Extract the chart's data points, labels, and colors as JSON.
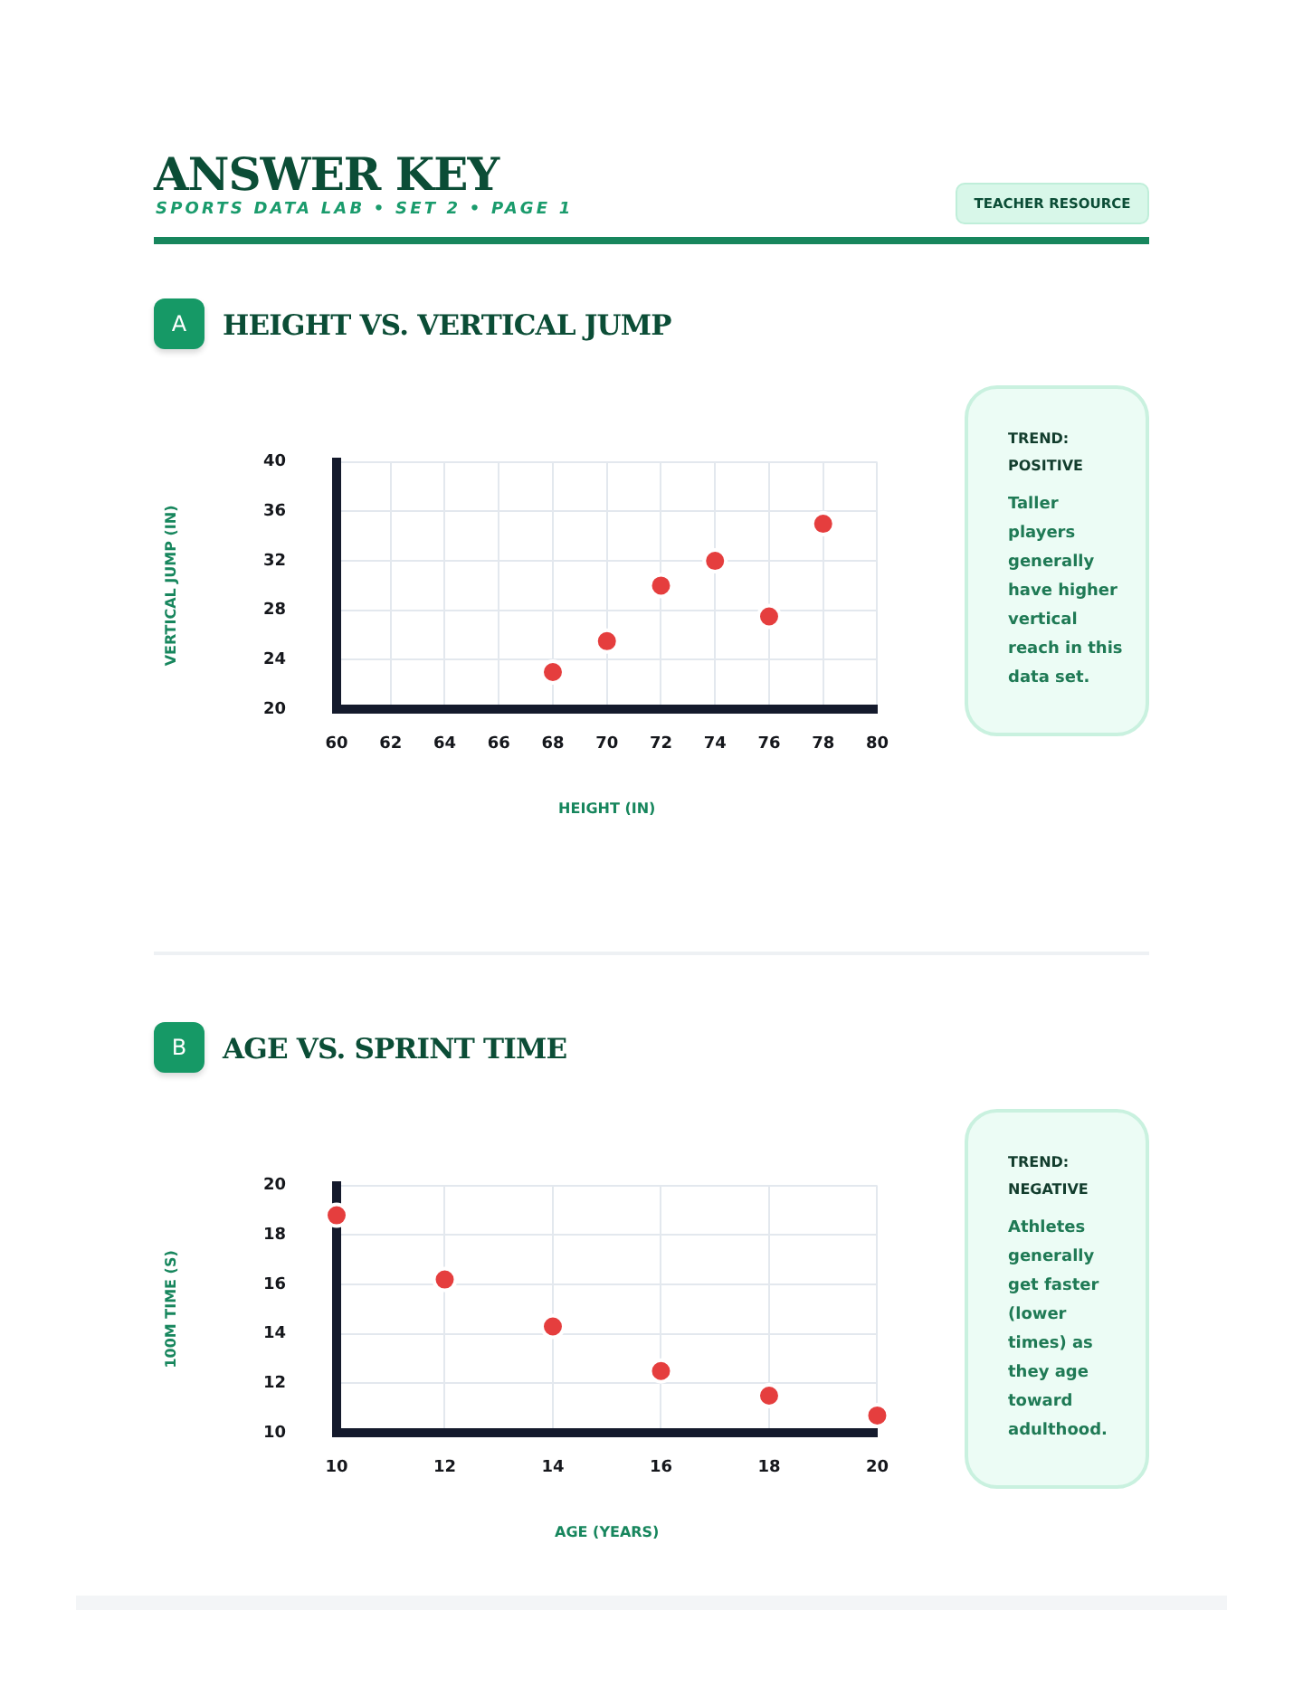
{
  "chart_data": [
    {
      "type": "other",
      "title": "ANSWER KEY",
      "subtitle": "SPORTS DATA LAB • SET 2 • PAGE 1",
      "annotations": [
        "TEACHER RESOURCE"
      ]
    },
    {
      "type": "scatter",
      "title": "HEIGHT VS. VERTICAL JUMP",
      "xlabel": "HEIGHT (IN)",
      "ylabel": "VERTICAL JUMP (IN)",
      "annotations": [
        "A",
        "TREND:\nPOSITIVE",
        "Taller players generally have higher vertical reach in this data set."
      ],
      "x": [
        68,
        70,
        72,
        74,
        76,
        78
      ],
      "values": [
        23,
        25.5,
        30,
        32,
        27.5,
        35
      ],
      "color": "#e53e3e",
      "marker": "circle",
      "xlim": [
        60,
        80
      ],
      "xticks": [
        60,
        62,
        64,
        66,
        68,
        70,
        72,
        74,
        76,
        78,
        80
      ],
      "ylim": [
        20,
        40
      ],
      "yticks": [
        20,
        24,
        28,
        32,
        36,
        40
      ],
      "grid": true
    },
    {
      "type": "scatter",
      "title": "AGE VS. SPRINT TIME",
      "xlabel": "AGE (YEARS)",
      "ylabel": "100M TIME (S)",
      "annotations": [
        "B",
        "TREND:\nNEGATIVE",
        "Athletes generally get faster (lower times) as they age toward adulthood."
      ],
      "x": [
        10,
        12,
        14,
        16,
        18,
        20
      ],
      "values": [
        18.8,
        16.2,
        14.3,
        12.5,
        11.5,
        10.7
      ],
      "color": "#e53e3e",
      "marker": "circle",
      "xlim": [
        10,
        20
      ],
      "xticks": [
        10,
        12,
        14,
        16,
        18,
        20
      ],
      "ylim": [
        10,
        20
      ],
      "yticks": [
        10,
        12,
        14,
        16,
        18,
        20
      ],
      "grid": true
    }
  ]
}
